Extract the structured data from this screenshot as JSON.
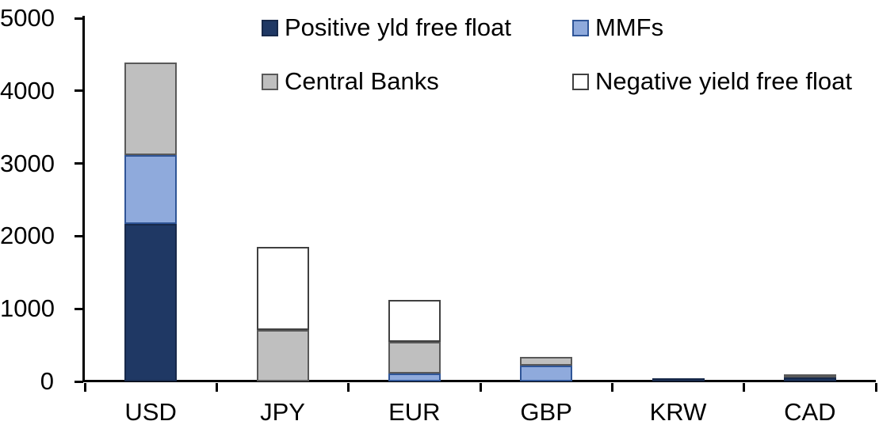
{
  "chart_data": {
    "type": "bar",
    "stacked": true,
    "title": "",
    "xlabel": "",
    "ylabel": "",
    "categories": [
      "USD",
      "JPY",
      "EUR",
      "GBP",
      "KRW",
      "CAD"
    ],
    "series": [
      {
        "name": "Positive yld free float",
        "color": "#1F3864",
        "border": "#17294A",
        "values": [
          2170,
          0,
          0,
          0,
          45,
          50
        ]
      },
      {
        "name": "MMFs",
        "color": "#8FAADC",
        "border": "#2F5597",
        "values": [
          945,
          0,
          110,
          220,
          0,
          0
        ]
      },
      {
        "name": "Central Banks",
        "color": "#BFBFBF",
        "border": "#595959",
        "values": [
          1275,
          705,
          435,
          115,
          0,
          30
        ]
      },
      {
        "name": "Negative yield free float",
        "color": "#FFFFFF",
        "border": "#404040",
        "values": [
          0,
          1150,
          575,
          0,
          0,
          0
        ]
      }
    ],
    "stack_totals": [
      4390,
      1855,
      1120,
      335,
      45,
      80
    ],
    "ylim": [
      0,
      5000
    ],
    "yticks": [
      0,
      1000,
      2000,
      3000,
      4000,
      5000
    ],
    "grid": false,
    "legend_position": "top",
    "axis_color": "#000000",
    "text_color": "#000000"
  }
}
